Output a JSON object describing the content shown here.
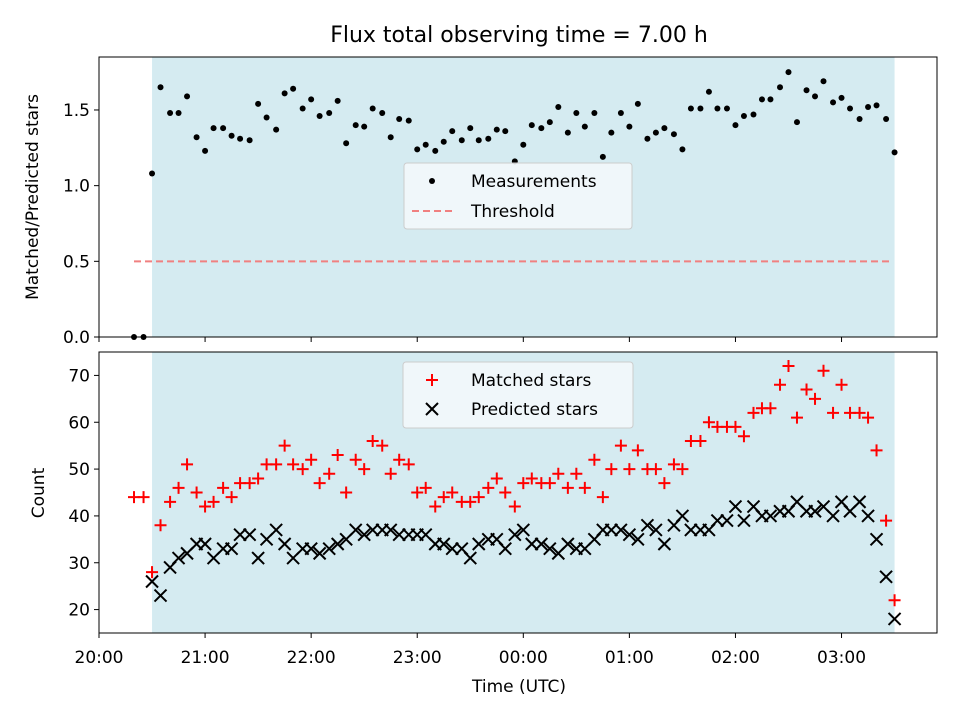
{
  "figure": {
    "title": "Flux total observing time = 7.00 h",
    "xlabel": "Time (UTC)",
    "xticks": [
      "20:00",
      "21:00",
      "22:00",
      "23:00",
      "00:00",
      "01:00",
      "02:00",
      "03:00"
    ]
  },
  "colors": {
    "shade": "#d5ebf1",
    "measurement": "#000000",
    "threshold": "#f08080",
    "matched": "#ff0000",
    "predicted": "#000000"
  },
  "chart_data": [
    {
      "type": "scatter",
      "ylabel": "Matched/Predicted stars",
      "ylim": [
        0.0,
        1.85
      ],
      "yticks": [
        "0.0",
        "0.5",
        "1.0",
        "1.5"
      ],
      "xlim_hours": [
        20.0,
        27.9
      ],
      "shaded_span_hours": [
        20.5,
        27.5
      ],
      "legend": {
        "position": "center",
        "entries": [
          "Measurements",
          "Threshold"
        ]
      },
      "threshold": {
        "name": "Threshold",
        "value": 0.5,
        "x_range_hours": [
          20.33,
          27.47
        ]
      },
      "series": [
        {
          "name": "Measurements",
          "x": [
            20.33,
            20.42,
            20.5,
            20.58,
            20.67,
            20.75,
            20.83,
            20.92,
            21.0,
            21.08,
            21.17,
            21.25,
            21.33,
            21.42,
            21.5,
            21.58,
            21.67,
            21.75,
            21.83,
            21.92,
            22.0,
            22.08,
            22.17,
            22.25,
            22.33,
            22.42,
            22.5,
            22.58,
            22.67,
            22.75,
            22.83,
            22.92,
            23.0,
            23.08,
            23.17,
            23.25,
            23.33,
            23.42,
            23.5,
            23.58,
            23.67,
            23.75,
            23.83,
            23.92,
            24.0,
            24.08,
            24.17,
            24.25,
            24.33,
            24.42,
            24.5,
            24.58,
            24.67,
            24.75,
            24.83,
            24.92,
            25.0,
            25.08,
            25.17,
            25.25,
            25.33,
            25.42,
            25.5,
            25.58,
            25.67,
            25.75,
            25.83,
            25.92,
            26.0,
            26.08,
            26.17,
            26.25,
            26.33,
            26.42,
            26.5,
            26.58,
            26.67,
            26.75,
            26.83,
            26.92,
            27.0,
            27.08,
            27.17,
            27.25,
            27.33,
            27.42,
            27.5
          ],
          "y": [
            0.0,
            0.0,
            1.08,
            1.65,
            1.48,
            1.48,
            1.59,
            1.32,
            1.23,
            1.38,
            1.38,
            1.33,
            1.31,
            1.3,
            1.54,
            1.45,
            1.37,
            1.61,
            1.64,
            1.51,
            1.57,
            1.46,
            1.48,
            1.56,
            1.28,
            1.4,
            1.39,
            1.51,
            1.48,
            1.32,
            1.44,
            1.43,
            1.24,
            1.27,
            1.23,
            1.29,
            1.36,
            1.3,
            1.38,
            1.3,
            1.31,
            1.37,
            1.36,
            1.16,
            1.27,
            1.4,
            1.38,
            1.42,
            1.52,
            1.35,
            1.48,
            1.39,
            1.48,
            1.19,
            1.35,
            1.48,
            1.39,
            1.54,
            1.31,
            1.35,
            1.38,
            1.34,
            1.24,
            1.51,
            1.51,
            1.62,
            1.51,
            1.51,
            1.4,
            1.46,
            1.47,
            1.57,
            1.57,
            1.65,
            1.75,
            1.42,
            1.63,
            1.59,
            1.69,
            1.55,
            1.58,
            1.51,
            1.44,
            1.52,
            1.53,
            1.44,
            1.22
          ]
        }
      ]
    },
    {
      "type": "scatter",
      "ylabel": "Count",
      "ylim": [
        15,
        75
      ],
      "yticks": [
        "20",
        "30",
        "40",
        "50",
        "60",
        "70"
      ],
      "xlim_hours": [
        20.0,
        27.9
      ],
      "shaded_span_hours": [
        20.5,
        27.5
      ],
      "legend": {
        "position": "top-center",
        "entries": [
          "Matched stars",
          "Predicted stars"
        ]
      },
      "series": [
        {
          "name": "Matched stars",
          "marker": "plus",
          "x": [
            20.33,
            20.42,
            20.5,
            20.58,
            20.67,
            20.75,
            20.83,
            20.92,
            21.0,
            21.08,
            21.17,
            21.25,
            21.33,
            21.42,
            21.5,
            21.58,
            21.67,
            21.75,
            21.83,
            21.92,
            22.0,
            22.08,
            22.17,
            22.25,
            22.33,
            22.42,
            22.5,
            22.58,
            22.67,
            22.75,
            22.83,
            22.92,
            23.0,
            23.08,
            23.17,
            23.25,
            23.33,
            23.42,
            23.5,
            23.58,
            23.67,
            23.75,
            23.83,
            23.92,
            24.0,
            24.08,
            24.17,
            24.25,
            24.33,
            24.42,
            24.5,
            24.58,
            24.67,
            24.75,
            24.83,
            24.92,
            25.0,
            25.08,
            25.17,
            25.25,
            25.33,
            25.42,
            25.5,
            25.58,
            25.67,
            25.75,
            25.83,
            25.92,
            26.0,
            26.08,
            26.17,
            26.25,
            26.33,
            26.42,
            26.5,
            26.58,
            26.67,
            26.75,
            26.83,
            26.92,
            27.0,
            27.08,
            27.17,
            27.25,
            27.33,
            27.42,
            27.5
          ],
          "y": [
            44,
            44,
            28,
            38,
            43,
            46,
            51,
            45,
            42,
            43,
            46,
            44,
            47,
            47,
            48,
            51,
            51,
            55,
            51,
            50,
            52,
            47,
            49,
            53,
            45,
            52,
            50,
            56,
            55,
            49,
            52,
            51,
            45,
            46,
            42,
            44,
            45,
            43,
            43,
            44,
            46,
            48,
            45,
            42,
            47,
            48,
            47,
            47,
            49,
            46,
            49,
            46,
            52,
            44,
            50,
            55,
            50,
            54,
            50,
            50,
            47,
            51,
            50,
            56,
            56,
            60,
            59,
            59,
            59,
            57,
            62,
            63,
            63,
            68,
            72,
            61,
            67,
            65,
            71,
            62,
            68,
            62,
            62,
            61,
            54,
            39,
            22
          ]
        },
        {
          "name": "Predicted stars",
          "marker": "x",
          "x": [
            20.5,
            20.58,
            20.67,
            20.75,
            20.83,
            20.92,
            21.0,
            21.08,
            21.17,
            21.25,
            21.33,
            21.42,
            21.5,
            21.58,
            21.67,
            21.75,
            21.83,
            21.92,
            22.0,
            22.08,
            22.17,
            22.25,
            22.33,
            22.42,
            22.5,
            22.58,
            22.67,
            22.75,
            22.83,
            22.92,
            23.0,
            23.08,
            23.17,
            23.25,
            23.33,
            23.42,
            23.5,
            23.58,
            23.67,
            23.75,
            23.83,
            23.92,
            24.0,
            24.08,
            24.17,
            24.25,
            24.33,
            24.42,
            24.5,
            24.58,
            24.67,
            24.75,
            24.83,
            24.92,
            25.0,
            25.08,
            25.17,
            25.25,
            25.33,
            25.42,
            25.5,
            25.58,
            25.67,
            25.75,
            25.83,
            25.92,
            26.0,
            26.08,
            26.17,
            26.25,
            26.33,
            26.42,
            26.5,
            26.58,
            26.67,
            26.75,
            26.83,
            26.92,
            27.0,
            27.08,
            27.17,
            27.25,
            27.33,
            27.42,
            27.5
          ],
          "y": [
            26,
            23,
            29,
            31,
            32,
            34,
            34,
            31,
            33,
            33,
            36,
            36,
            31,
            35,
            37,
            34,
            31,
            33,
            33,
            32,
            33,
            34,
            35,
            37,
            36,
            37,
            37,
            37,
            36,
            36,
            36,
            36,
            34,
            34,
            33,
            33,
            31,
            34,
            35,
            35,
            33,
            36,
            37,
            34,
            34,
            33,
            32,
            34,
            33,
            33,
            35,
            37,
            37,
            37,
            36,
            35,
            38,
            37,
            34,
            38,
            40,
            37,
            37,
            37,
            39,
            39,
            42,
            39,
            42,
            40,
            40,
            41,
            41,
            43,
            41,
            41,
            42,
            40,
            43,
            41,
            43,
            40,
            35,
            27,
            18
          ]
        }
      ]
    }
  ]
}
